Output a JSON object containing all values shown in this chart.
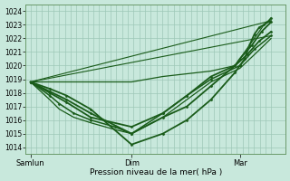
{
  "bg_color": "#c8e8dc",
  "grid_color": "#9dc8b8",
  "line_color": "#1a5c1a",
  "ylim": [
    1013.5,
    1024.5
  ],
  "yticks": [
    1014,
    1015,
    1016,
    1017,
    1018,
    1019,
    1020,
    1021,
    1022,
    1023,
    1024
  ],
  "xtick_labels": [
    "Samlun",
    "Dim",
    "Mar"
  ],
  "xtick_positions": [
    0.0,
    0.42,
    0.87
  ],
  "xlabel": "Pression niveau de la mer( hPa )",
  "lines": [
    {
      "x": [
        0.0,
        0.42,
        0.55,
        0.65,
        0.75,
        0.85,
        0.87,
        0.89,
        0.91,
        0.93,
        0.95,
        0.97,
        0.99,
        1.0
      ],
      "y": [
        1018.8,
        1018.8,
        1019.2,
        1019.4,
        1019.6,
        1020.0,
        1020.5,
        1021.0,
        1021.5,
        1022.0,
        1022.5,
        1023.0,
        1023.2,
        1023.3
      ],
      "lw": 0.9,
      "marker": null
    },
    {
      "x": [
        0.0,
        0.08,
        0.15,
        0.25,
        0.42,
        0.55,
        0.65,
        0.75,
        0.85,
        0.87,
        0.89,
        0.91,
        0.93,
        0.95,
        0.97,
        0.99,
        1.0
      ],
      "y": [
        1018.8,
        1018.3,
        1017.8,
        1016.8,
        1014.2,
        1015.0,
        1016.0,
        1017.5,
        1019.5,
        1020.0,
        1020.5,
        1021.5,
        1022.3,
        1022.8,
        1023.0,
        1023.3,
        1023.5
      ],
      "lw": 1.3,
      "marker": "D",
      "ms": 1.5
    },
    {
      "x": [
        0.0,
        0.08,
        0.15,
        0.25,
        0.42,
        0.55,
        0.65,
        0.75,
        0.85,
        0.87,
        0.92,
        0.96,
        1.0
      ],
      "y": [
        1018.8,
        1018.1,
        1017.5,
        1016.5,
        1015.0,
        1016.2,
        1017.0,
        1018.5,
        1020.0,
        1020.5,
        1021.5,
        1022.5,
        1023.2
      ],
      "lw": 1.3,
      "marker": "D",
      "ms": 1.5
    },
    {
      "x": [
        0.0,
        0.08,
        0.15,
        0.25,
        0.42,
        0.55,
        0.65,
        0.75,
        0.85,
        0.9,
        0.95,
        1.0
      ],
      "y": [
        1018.8,
        1018.0,
        1017.3,
        1016.2,
        1015.5,
        1016.5,
        1017.8,
        1019.2,
        1020.0,
        1020.8,
        1021.8,
        1022.5
      ],
      "lw": 1.3,
      "marker": "D",
      "ms": 1.5
    },
    {
      "x": [
        0.0,
        0.08,
        0.12,
        0.18,
        0.25,
        0.35,
        0.42,
        0.55,
        0.65,
        0.75,
        0.87,
        0.93,
        1.0
      ],
      "y": [
        1018.8,
        1017.8,
        1017.2,
        1016.5,
        1016.0,
        1015.5,
        1015.0,
        1016.5,
        1017.8,
        1019.0,
        1020.0,
        1021.2,
        1022.2
      ],
      "lw": 1.1,
      "marker": "D",
      "ms": 1.5
    },
    {
      "x": [
        0.0,
        0.08,
        0.12,
        0.18,
        0.25,
        0.35,
        0.42,
        0.55,
        0.65,
        0.75,
        0.87,
        0.93,
        1.0
      ],
      "y": [
        1018.8,
        1017.5,
        1016.8,
        1016.2,
        1015.8,
        1015.3,
        1015.0,
        1016.2,
        1017.5,
        1018.8,
        1019.8,
        1020.8,
        1022.0
      ],
      "lw": 0.9,
      "marker": null
    },
    {
      "x": [
        0.0,
        1.0
      ],
      "y": [
        1018.8,
        1022.2
      ],
      "lw": 0.8,
      "marker": null
    },
    {
      "x": [
        0.0,
        1.0
      ],
      "y": [
        1018.8,
        1023.3
      ],
      "lw": 0.8,
      "marker": null
    }
  ]
}
